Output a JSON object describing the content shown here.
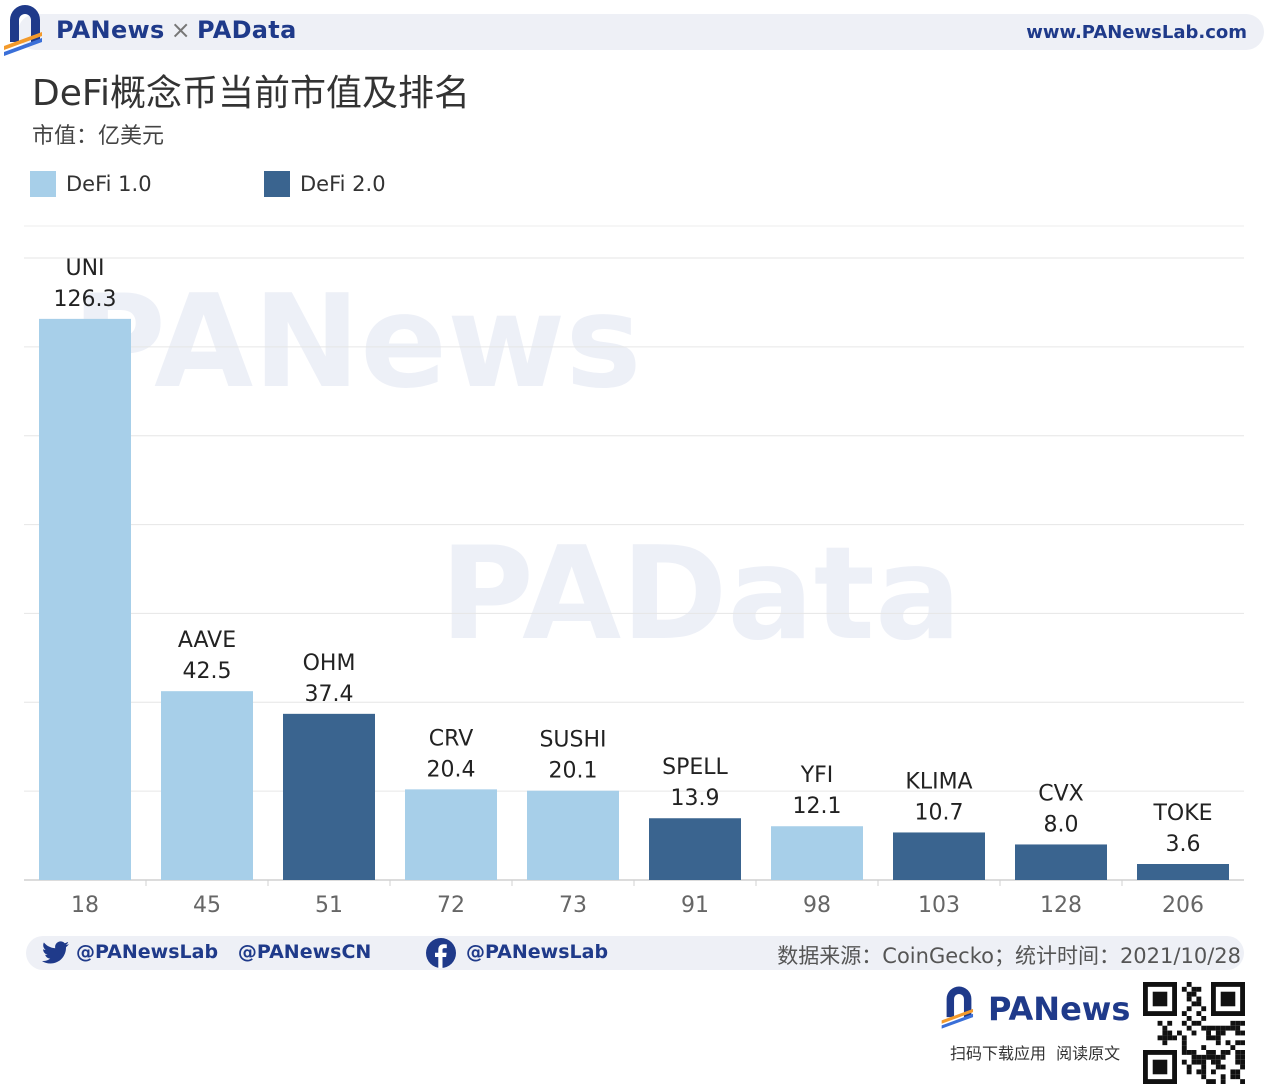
{
  "header": {
    "brand_left": "PANews",
    "brand_sep": "×",
    "brand_right": "PAData",
    "url": "www.PANewsLab.com"
  },
  "chart_title": "DeFi概念币当前市值及排名",
  "unit_label": "市值：亿美元",
  "legend": [
    {
      "label": "DeFi 1.0",
      "color": "#a7cfe9"
    },
    {
      "label": "DeFi 2.0",
      "color": "#3a648f"
    }
  ],
  "watermarks": [
    "PANews",
    "PAData"
  ],
  "chart_data": {
    "type": "bar",
    "categories": [
      "18",
      "45",
      "51",
      "72",
      "73",
      "91",
      "98",
      "103",
      "128",
      "206"
    ],
    "names": [
      "UNI",
      "AAVE",
      "OHM",
      "CRV",
      "SUSHI",
      "SPELL",
      "YFI",
      "KLIMA",
      "CVX",
      "TOKE"
    ],
    "values": [
      126.3,
      42.5,
      37.4,
      20.4,
      20.1,
      13.9,
      12.1,
      10.7,
      8.0,
      3.6
    ],
    "value_labels": [
      "126.3",
      "42.5",
      "37.4",
      "20.4",
      "20.1",
      "13.9",
      "12.1",
      "10.7",
      "8.0",
      "3.6"
    ],
    "group": [
      "DeFi 1.0",
      "DeFi 1.0",
      "DeFi 2.0",
      "DeFi 1.0",
      "DeFi 1.0",
      "DeFi 2.0",
      "DeFi 1.0",
      "DeFi 2.0",
      "DeFi 2.0",
      "DeFi 2.0"
    ],
    "ylim": [
      0,
      140
    ],
    "grid": true,
    "legend_position": "top-left"
  },
  "footer": {
    "twitter_handles": "@PANewsLab   @PANewsCN",
    "facebook_handle": "@PANewsLab",
    "source": "数据来源：CoinGecko；统计时间：2021/10/28",
    "brand": "PANews",
    "download": "扫码下载应用  阅读原文",
    "twitter_icon": "twitter-icon",
    "facebook_icon": "facebook-icon"
  }
}
